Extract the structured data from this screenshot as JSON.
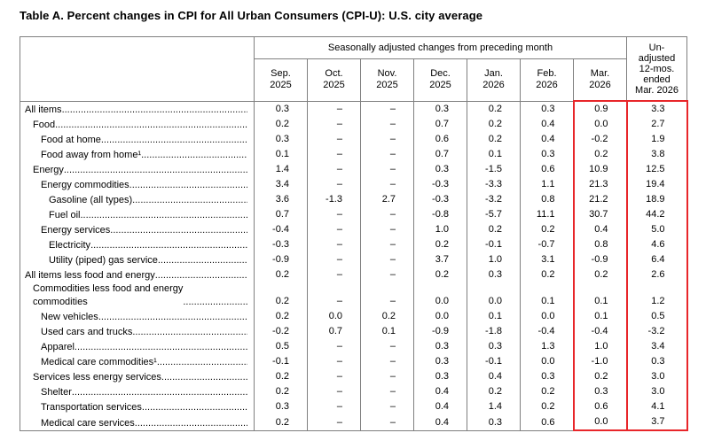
{
  "title": "Table A. Percent changes in CPI for All Urban Consumers (CPI-U): U.S. city average",
  "table": {
    "group_header": "Seasonally adjusted changes from preceding month",
    "unadjusted_header": "Un-\nadjusted\n12-mos.\nended\nMar. 2026",
    "months": [
      "Sep.\n2025",
      "Oct.\n2025",
      "Nov.\n2025",
      "Dec.\n2025",
      "Jan.\n2026",
      "Feb.\n2026",
      "Mar.\n2026"
    ],
    "missing_value_symbol": "–",
    "highlight_color": "#e8262a",
    "rows": [
      {
        "label": "All items",
        "indent": 0,
        "values": [
          "0.3",
          "–",
          "–",
          "0.3",
          "0.2",
          "0.3",
          "0.9"
        ],
        "annual": "3.3"
      },
      {
        "label": "Food",
        "indent": 1,
        "values": [
          "0.2",
          "–",
          "–",
          "0.7",
          "0.2",
          "0.4",
          "0.0"
        ],
        "annual": "2.7"
      },
      {
        "label": "Food at home",
        "indent": 2,
        "values": [
          "0.3",
          "–",
          "–",
          "0.6",
          "0.2",
          "0.4",
          "-0.2"
        ],
        "annual": "1.9"
      },
      {
        "label": "Food away from home¹",
        "indent": 2,
        "values": [
          "0.1",
          "–",
          "–",
          "0.7",
          "0.1",
          "0.3",
          "0.2"
        ],
        "annual": "3.8"
      },
      {
        "label": "Energy",
        "indent": 1,
        "values": [
          "1.4",
          "–",
          "–",
          "0.3",
          "-1.5",
          "0.6",
          "10.9"
        ],
        "annual": "12.5"
      },
      {
        "label": "Energy commodities",
        "indent": 2,
        "values": [
          "3.4",
          "–",
          "–",
          "-0.3",
          "-3.3",
          "1.1",
          "21.3"
        ],
        "annual": "19.4"
      },
      {
        "label": "Gasoline (all types)",
        "indent": 3,
        "values": [
          "3.6",
          "-1.3",
          "2.7",
          "-0.3",
          "-3.2",
          "0.8",
          "21.2"
        ],
        "annual": "18.9"
      },
      {
        "label": "Fuel oil",
        "indent": 3,
        "values": [
          "0.7",
          "–",
          "–",
          "-0.8",
          "-5.7",
          "11.1",
          "30.7"
        ],
        "annual": "44.2"
      },
      {
        "label": "Energy services",
        "indent": 2,
        "values": [
          "-0.4",
          "–",
          "–",
          "1.0",
          "0.2",
          "0.2",
          "0.4"
        ],
        "annual": "5.0"
      },
      {
        "label": "Electricity",
        "indent": 3,
        "values": [
          "-0.3",
          "–",
          "–",
          "0.2",
          "-0.1",
          "-0.7",
          "0.8"
        ],
        "annual": "4.6"
      },
      {
        "label": "Utility (piped) gas service",
        "indent": 3,
        "values": [
          "-0.9",
          "–",
          "–",
          "3.7",
          "1.0",
          "3.1",
          "-0.9"
        ],
        "annual": "6.4"
      },
      {
        "label": "All items less food and energy",
        "indent": 0,
        "values": [
          "0.2",
          "–",
          "–",
          "0.2",
          "0.3",
          "0.2",
          "0.2"
        ],
        "annual": "2.6"
      },
      {
        "label": "Commodities less food and energy\ncommodities",
        "indent": 1,
        "values": [
          "0.2",
          "–",
          "–",
          "0.0",
          "0.0",
          "0.1",
          "0.1"
        ],
        "annual": "1.2"
      },
      {
        "label": "New vehicles",
        "indent": 2,
        "values": [
          "0.2",
          "0.0",
          "0.2",
          "0.0",
          "0.1",
          "0.0",
          "0.1"
        ],
        "annual": "0.5"
      },
      {
        "label": "Used cars and trucks",
        "indent": 2,
        "values": [
          "-0.2",
          "0.7",
          "0.1",
          "-0.9",
          "-1.8",
          "-0.4",
          "-0.4"
        ],
        "annual": "-3.2"
      },
      {
        "label": "Apparel",
        "indent": 2,
        "values": [
          "0.5",
          "–",
          "–",
          "0.3",
          "0.3",
          "1.3",
          "1.0"
        ],
        "annual": "3.4"
      },
      {
        "label": "Medical care commodities¹",
        "indent": 2,
        "values": [
          "-0.1",
          "–",
          "–",
          "0.3",
          "-0.1",
          "0.0",
          "-1.0"
        ],
        "annual": "0.3"
      },
      {
        "label": "Services less energy services",
        "indent": 1,
        "values": [
          "0.2",
          "–",
          "–",
          "0.3",
          "0.4",
          "0.3",
          "0.2"
        ],
        "annual": "3.0"
      },
      {
        "label": "Shelter",
        "indent": 2,
        "values": [
          "0.2",
          "–",
          "–",
          "0.4",
          "0.2",
          "0.2",
          "0.3"
        ],
        "annual": "3.0"
      },
      {
        "label": "Transportation services",
        "indent": 2,
        "values": [
          "0.3",
          "–",
          "–",
          "0.4",
          "1.4",
          "0.2",
          "0.6"
        ],
        "annual": "4.1"
      },
      {
        "label": "Medical care services",
        "indent": 2,
        "values": [
          "0.2",
          "–",
          "–",
          "0.4",
          "0.3",
          "0.6",
          "0.0"
        ],
        "annual": "3.7"
      }
    ]
  }
}
